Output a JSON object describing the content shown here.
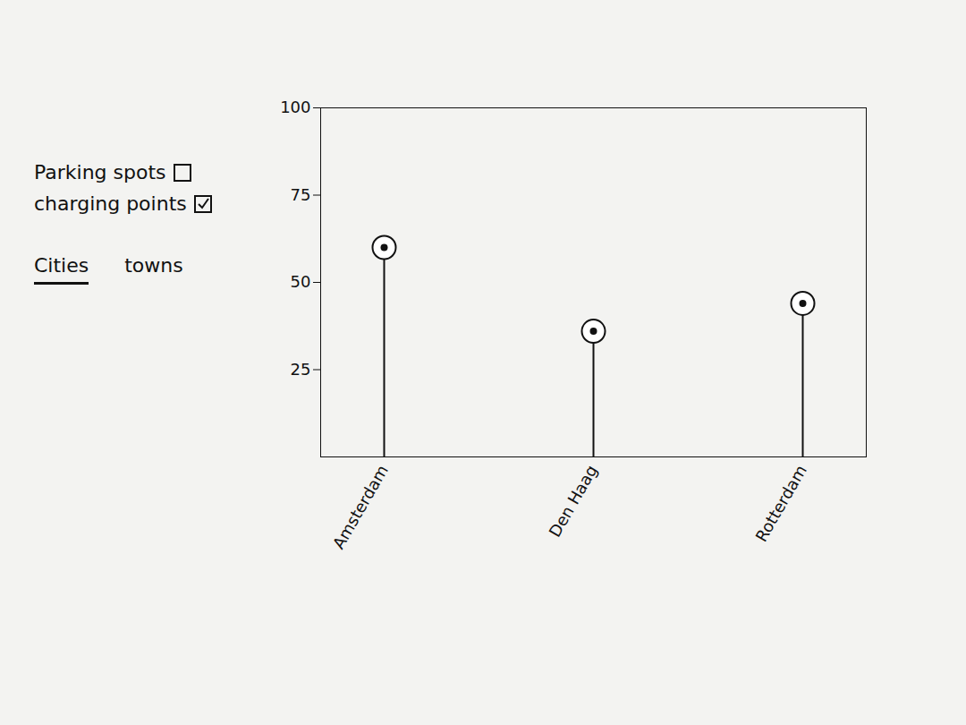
{
  "chart_data": {
    "type": "lollipop",
    "categories": [
      "Amsterdam",
      "Den Haag",
      "Rotterdam"
    ],
    "values": [
      60,
      36,
      44
    ],
    "color": "#111111",
    "ylim": [
      0,
      100
    ],
    "yticks": [
      25,
      50,
      75,
      100
    ],
    "grid": false
  },
  "controls": {
    "checkboxes": [
      {
        "label": "Parking spots",
        "checked": false
      },
      {
        "label": "charging points",
        "checked": true
      }
    ],
    "tabs": [
      {
        "label": "Cities",
        "selected": true
      },
      {
        "label": "towns",
        "selected": false
      }
    ]
  }
}
